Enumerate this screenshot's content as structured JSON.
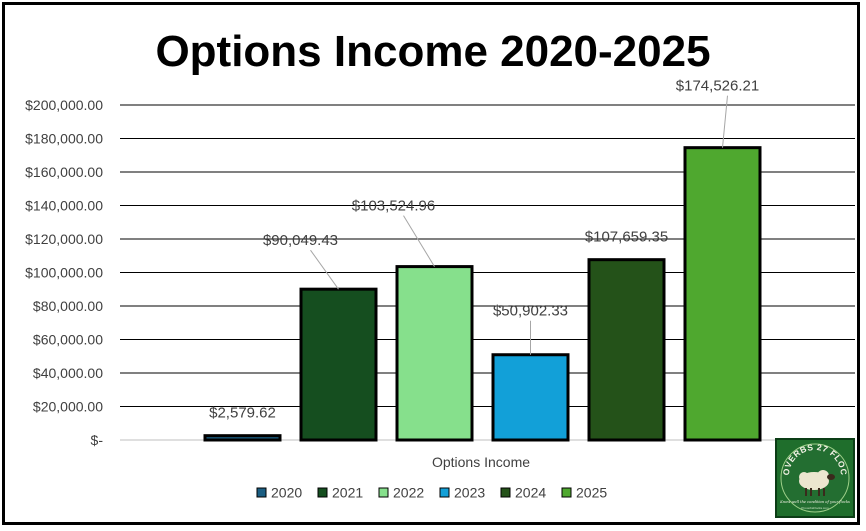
{
  "chart_data": {
    "type": "bar",
    "title": "Options Income 2020-2025",
    "xlabel": "Options Income",
    "ylabel": "",
    "ylim": [
      0,
      200000
    ],
    "yticks": [
      {
        "value": 0,
        "label": "$-"
      },
      {
        "value": 20000,
        "label": "$20,000.00"
      },
      {
        "value": 40000,
        "label": "$40,000.00"
      },
      {
        "value": 60000,
        "label": "$60,000.00"
      },
      {
        "value": 80000,
        "label": "$80,000.00"
      },
      {
        "value": 100000,
        "label": "$100,000.00"
      },
      {
        "value": 120000,
        "label": "$120,000.00"
      },
      {
        "value": 140000,
        "label": "$140,000.00"
      },
      {
        "value": 160000,
        "label": "$160,000.00"
      },
      {
        "value": 180000,
        "label": "$180,000.00"
      },
      {
        "value": 200000,
        "label": "$200,000.00"
      }
    ],
    "categories": [
      "Options Income"
    ],
    "series": [
      {
        "name": "2020",
        "value": 2579.62,
        "label": "$2,579.62",
        "color": "#1b5e82"
      },
      {
        "name": "2021",
        "value": 90049.43,
        "label": "$90,049.43",
        "color": "#154e1f"
      },
      {
        "name": "2022",
        "value": 103524.96,
        "label": "$103,524.96",
        "color": "#86e08c"
      },
      {
        "name": "2023",
        "value": 50902.33,
        "label": "$50,902.33",
        "color": "#12a0d8"
      },
      {
        "name": "2024",
        "value": 107659.35,
        "label": "$107,659.35",
        "color": "#245219"
      },
      {
        "name": "2025",
        "value": 174526.21,
        "label": "$174,526.21",
        "color": "#4fa82f"
      }
    ],
    "grid": true,
    "legend_position": "bottom"
  },
  "logo": {
    "text": "PROVERBS 27 FLOCKS",
    "tagline": "Know well the condition of your flocks",
    "fine_print": "ProverbsFlocks.com"
  }
}
